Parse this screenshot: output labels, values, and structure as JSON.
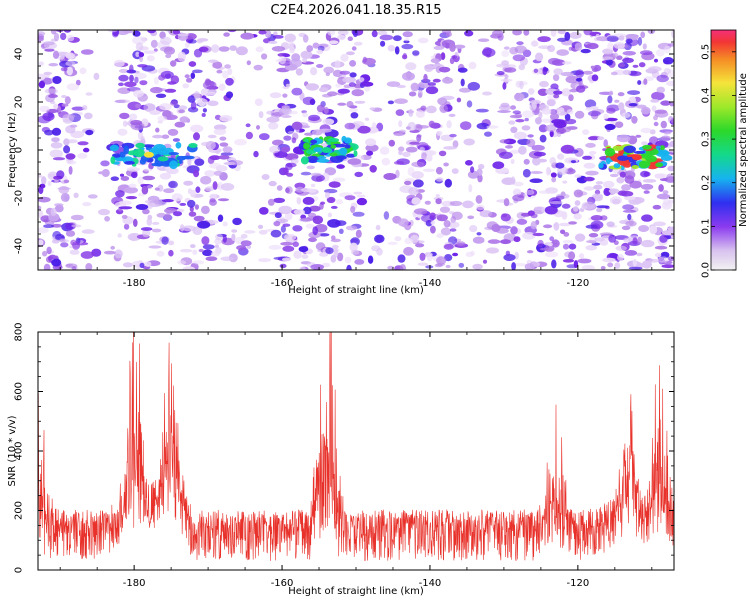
{
  "figure": {
    "title": "C2E4.2026.041.18.35.R15"
  },
  "chart_data": [
    {
      "id": "spectrogram",
      "type": "heatmap",
      "xlabel": "Height of straight line (km)",
      "ylabel": "Frequency (Hz)",
      "xlim": [
        -193,
        -107
      ],
      "ylim": [
        -50,
        50
      ],
      "x_ticks": [
        -180,
        -160,
        -140,
        -120
      ],
      "y_ticks": [
        -40,
        -20,
        0,
        20,
        40
      ],
      "colorbar": {
        "label": "Normalized spectral amplitude",
        "range": [
          0.0,
          0.55
        ],
        "ticks": [
          0.0,
          0.1,
          0.2,
          0.3,
          0.4,
          0.5
        ]
      },
      "features": [
        {
          "x_center": -178,
          "x_span": [
            -183,
            -172
          ],
          "y_center": -2,
          "peak_amplitude": 0.38
        },
        {
          "x_center": -154,
          "x_span": [
            -157,
            -150
          ],
          "y_center": 0,
          "peak_amplitude": 0.28
        },
        {
          "x_center": -112,
          "x_span": [
            -117,
            -108
          ],
          "y_center": -3,
          "peak_amplitude": 0.45
        }
      ]
    },
    {
      "id": "snr",
      "type": "line",
      "xlabel": "Height of straight line (km)",
      "ylabel": "SNR (10 * v/v)",
      "xlim": [
        -193,
        -107
      ],
      "ylim": [
        0,
        800
      ],
      "x_ticks": [
        -180,
        -160,
        -140,
        -120
      ],
      "y_ticks": [
        0,
        200,
        400,
        600,
        800
      ],
      "series": [
        {
          "name": "SNR",
          "color": "#e8312a",
          "baseline": 140,
          "noise_range": [
            30,
            310
          ],
          "peaks": [
            {
              "x": -193.0,
              "y": 470
            },
            {
              "x": -180.0,
              "y": 700
            },
            {
              "x": -175.0,
              "y": 690
            },
            {
              "x": -154.0,
              "y": 800
            },
            {
              "x": -123.0,
              "y": 440
            },
            {
              "x": -113.0,
              "y": 480
            },
            {
              "x": -109.0,
              "y": 560
            }
          ]
        }
      ]
    }
  ]
}
